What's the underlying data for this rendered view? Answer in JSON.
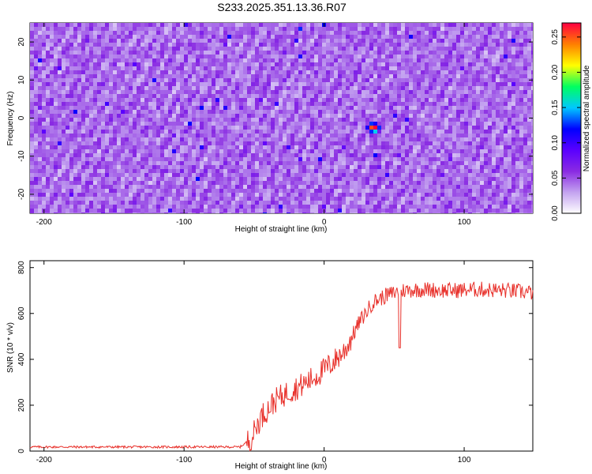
{
  "title": "S233.2025.351.13.36.R07",
  "chart_data": [
    {
      "type": "heatmap",
      "xlabel": "Height of straight line (km)",
      "ylabel": "Frequency (Hz)",
      "xlim": [
        -210,
        149
      ],
      "ylim": [
        -25,
        25
      ],
      "xticks": [
        -200,
        -100,
        0,
        100
      ],
      "xtick_labels": [
        "-200",
        "-100",
        "0",
        "100"
      ],
      "yticks": [
        -20,
        -10,
        0,
        10,
        20
      ],
      "ytick_labels": [
        "-20",
        "-10",
        "0",
        "10",
        "20"
      ],
      "colorbar": {
        "label": "Normalized spectral amplitude",
        "range": [
          0,
          0.27
        ],
        "ticks": [
          0.0,
          0.05,
          0.1,
          0.15,
          0.2,
          0.25
        ],
        "tick_labels": [
          "0.00",
          "0.05",
          "0.10",
          "0.15",
          "0.20",
          "0.25"
        ],
        "colors": [
          "#ffffff",
          "#c4a4f0",
          "#8a2be2",
          "#5a00ff",
          "#0000ff",
          "#00c8ff",
          "#00ff60",
          "#ffff00",
          "#ff8000",
          "#ff0040"
        ]
      },
      "background_level": 0.04,
      "peak": {
        "x": 34,
        "y": -2,
        "value": 0.27
      }
    },
    {
      "type": "line",
      "xlabel": "Height of straight line (km)",
      "ylabel": "SNR (10 * v/v)",
      "xlim": [
        -210,
        149
      ],
      "ylim": [
        0,
        830
      ],
      "xticks": [
        -200,
        -100,
        0,
        100
      ],
      "xtick_labels": [
        "-200",
        "-100",
        "0",
        "100"
      ],
      "yticks": [
        0,
        200,
        400,
        600,
        800
      ],
      "ytick_labels": [
        "0",
        "200",
        "400",
        "600",
        "800"
      ],
      "series": [
        {
          "name": "SNR",
          "color": "#e8302a",
          "x": [
            -210,
            -60,
            -52,
            -45,
            -35,
            -25,
            -15,
            -5,
            5,
            15,
            25,
            35,
            45,
            55,
            70,
            90,
            110,
            130,
            149
          ],
          "values": [
            18,
            18,
            55,
            150,
            220,
            260,
            290,
            330,
            380,
            440,
            560,
            650,
            680,
            700,
            705,
            700,
            705,
            700,
            690
          ]
        }
      ],
      "annotations": [
        {
          "x": 54,
          "y": 450,
          "text": "dip"
        }
      ]
    }
  ]
}
